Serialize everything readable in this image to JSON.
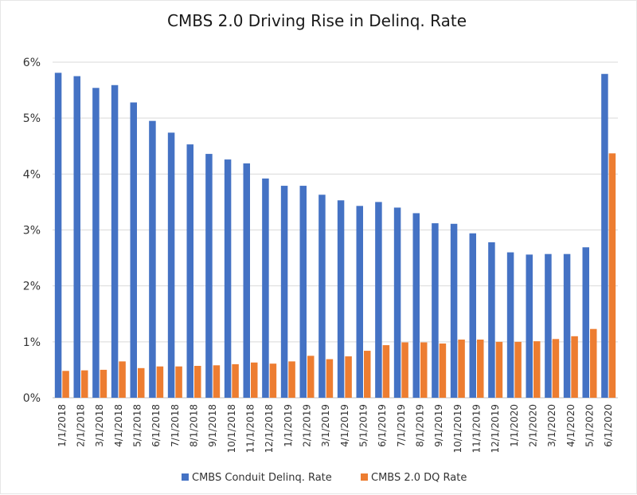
{
  "chart_data": {
    "type": "bar",
    "title": "CMBS 2.0 Driving Rise in Delinq. Rate",
    "xlabel": "",
    "ylabel": "",
    "ylim": [
      0,
      6
    ],
    "yticks": [
      "0%",
      "1%",
      "2%",
      "3%",
      "4%",
      "5%",
      "6%"
    ],
    "grid": true,
    "legend_position": "bottom",
    "categories": [
      "1/1/2018",
      "2/1/2018",
      "3/1/2018",
      "4/1/2018",
      "5/1/2018",
      "6/1/2018",
      "7/1/2018",
      "8/1/2018",
      "9/1/2018",
      "10/1/2018",
      "11/1/2018",
      "12/1/2018",
      "1/1/2019",
      "2/1/2019",
      "3/1/2019",
      "4/1/2019",
      "5/1/2019",
      "6/1/2019",
      "7/1/2019",
      "8/1/2019",
      "9/1/2019",
      "10/1/2019",
      "11/1/2019",
      "12/1/2019",
      "1/1/2020",
      "2/1/2020",
      "3/1/2020",
      "4/1/2020",
      "5/1/2020",
      "6/1/2020"
    ],
    "series": [
      {
        "name": "CMBS Conduit Delinq. Rate",
        "color": "#4472C4",
        "values": [
          5.81,
          5.75,
          5.54,
          5.59,
          5.28,
          4.95,
          4.74,
          4.53,
          4.36,
          4.26,
          4.19,
          3.92,
          3.79,
          3.79,
          3.63,
          3.53,
          3.43,
          3.5,
          3.4,
          3.3,
          3.12,
          3.11,
          2.94,
          2.78,
          2.6,
          2.56,
          2.57,
          2.57,
          2.69,
          5.79
        ]
      },
      {
        "name": "CMBS 2.0 DQ Rate",
        "color": "#ED7D31",
        "values": [
          0.48,
          0.49,
          0.5,
          0.65,
          0.53,
          0.56,
          0.56,
          0.57,
          0.58,
          0.6,
          0.63,
          0.61,
          0.65,
          0.75,
          0.69,
          0.74,
          0.84,
          0.94,
          0.99,
          0.99,
          0.97,
          1.04,
          1.04,
          1.0,
          1.0,
          1.01,
          1.05,
          1.1,
          1.23,
          4.37
        ]
      }
    ]
  }
}
